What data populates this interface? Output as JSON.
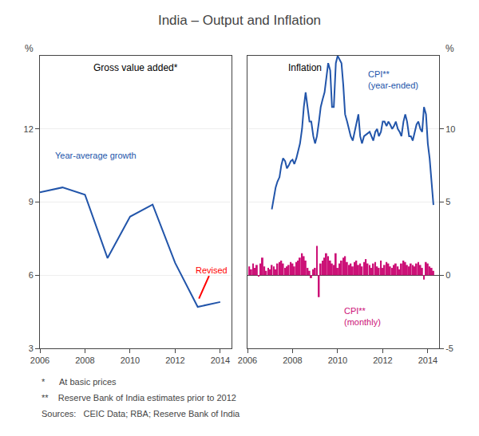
{
  "title": "India – Output and Inflation",
  "notes": [
    "*      At basic prices",
    "**    Reserve Bank of India estimates prior to 2012",
    "Sources:   CEIC Data; RBA; Reserve Bank of India"
  ],
  "chart_data": [
    {
      "type": "line",
      "subtitle": "Gross value added*",
      "ylabel": "%",
      "x": [
        2006,
        2007,
        2008,
        2009,
        2010,
        2011,
        2012,
        2013,
        2014
      ],
      "series": [
        {
          "name": "Year-average growth",
          "color": "#2255aa",
          "values": [
            9.4,
            9.6,
            9.3,
            6.7,
            8.4,
            8.9,
            6.5,
            4.7,
            4.9
          ]
        }
      ],
      "xlim": [
        2006,
        2014.5
      ],
      "xticks": [
        2006,
        2008,
        2010,
        2012,
        2014
      ],
      "ylim": [
        3,
        15
      ],
      "yticks": [
        3,
        6,
        9,
        12
      ],
      "grid": true,
      "annotations": [
        {
          "text": "Revised",
          "color": "red"
        }
      ]
    },
    {
      "type": "bar",
      "subtitle": "Inflation",
      "ylabel": "%",
      "series": [
        {
          "name": "CPI**\n(monthly)",
          "type": "bar",
          "color": "#cc1177",
          "x": [
            2006.08,
            2006.17,
            2006.25,
            2006.33,
            2006.42,
            2006.5,
            2006.58,
            2006.67,
            2006.75,
            2006.83,
            2006.92,
            2007.0,
            2007.08,
            2007.17,
            2007.25,
            2007.33,
            2007.42,
            2007.5,
            2007.58,
            2007.67,
            2007.75,
            2007.83,
            2007.92,
            2008.0,
            2008.08,
            2008.17,
            2008.25,
            2008.33,
            2008.42,
            2008.5,
            2008.58,
            2008.67,
            2008.75,
            2008.83,
            2008.92,
            2009.0,
            2009.08,
            2009.17,
            2009.25,
            2009.33,
            2009.42,
            2009.5,
            2009.58,
            2009.67,
            2009.75,
            2009.83,
            2009.92,
            2010.0,
            2010.08,
            2010.17,
            2010.25,
            2010.33,
            2010.42,
            2010.5,
            2010.58,
            2010.67,
            2010.75,
            2010.83,
            2010.92,
            2011.0,
            2011.08,
            2011.17,
            2011.25,
            2011.33,
            2011.42,
            2011.5,
            2011.58,
            2011.67,
            2011.75,
            2011.83,
            2011.92,
            2012.0,
            2012.08,
            2012.17,
            2012.25,
            2012.33,
            2012.42,
            2012.5,
            2012.58,
            2012.67,
            2012.75,
            2012.83,
            2012.92,
            2013.0,
            2013.08,
            2013.17,
            2013.25,
            2013.33,
            2013.42,
            2013.5,
            2013.58,
            2013.67,
            2013.75,
            2013.83,
            2013.92,
            2014.0,
            2014.08,
            2014.17,
            2014.25
          ],
          "values": [
            0.6,
            0.4,
            0.8,
            0.5,
            0.7,
            -0.1,
            0.8,
            1.2,
            0.6,
            0.3,
            0.5,
            0.4,
            0.7,
            0.6,
            0.4,
            0.8,
            0.9,
            1.0,
            0.8,
            0.5,
            0.6,
            0.7,
            0.9,
            0.8,
            0.6,
            0.9,
            1.0,
            1.2,
            1.5,
            1.3,
            1.0,
            0.5,
            0.3,
            -0.2,
            0.4,
            0.5,
            2.0,
            -1.5,
            0.8,
            1.0,
            1.2,
            1.5,
            1.3,
            1.0,
            0.8,
            0.7,
            1.5,
            0.5,
            0.8,
            1.0,
            1.2,
            1.3,
            0.9,
            0.7,
            0.8,
            0.6,
            0.9,
            1.0,
            0.7,
            0.8,
            0.6,
            0.9,
            1.1,
            0.8,
            0.7,
            0.5,
            0.8,
            0.9,
            0.6,
            0.5,
            1.0,
            0.5,
            0.7,
            0.9,
            0.8,
            0.6,
            0.5,
            0.7,
            0.8,
            0.6,
            0.4,
            0.8,
            1.0,
            0.9,
            0.7,
            0.6,
            0.8,
            0.7,
            0.6,
            0.8,
            0.9,
            0.7,
            0.5,
            -0.3,
            0.9,
            0.8,
            0.6,
            0.5,
            0.3
          ]
        },
        {
          "name": "CPI**\n(year-ended)",
          "type": "line",
          "color": "#2255aa",
          "x": [
            2007.08,
            2007.17,
            2007.25,
            2007.33,
            2007.42,
            2007.5,
            2007.58,
            2007.67,
            2007.75,
            2007.83,
            2007.92,
            2008.0,
            2008.08,
            2008.17,
            2008.25,
            2008.33,
            2008.42,
            2008.5,
            2008.58,
            2008.67,
            2008.75,
            2008.83,
            2008.92,
            2009.0,
            2009.08,
            2009.17,
            2009.25,
            2009.33,
            2009.42,
            2009.5,
            2009.58,
            2009.67,
            2009.75,
            2009.83,
            2009.92,
            2010.0,
            2010.08,
            2010.17,
            2010.25,
            2010.33,
            2010.42,
            2010.5,
            2010.58,
            2010.67,
            2010.75,
            2010.83,
            2010.92,
            2011.0,
            2011.08,
            2011.17,
            2011.25,
            2011.33,
            2011.42,
            2011.5,
            2011.58,
            2011.67,
            2011.75,
            2011.83,
            2011.92,
            2012.0,
            2012.08,
            2012.17,
            2012.25,
            2012.33,
            2012.42,
            2012.5,
            2012.58,
            2012.67,
            2012.75,
            2012.83,
            2012.92,
            2013.0,
            2013.08,
            2013.17,
            2013.25,
            2013.33,
            2013.42,
            2013.5,
            2013.58,
            2013.67,
            2013.75,
            2013.83,
            2013.92,
            2014.0,
            2014.08,
            2014.17,
            2014.25
          ],
          "values": [
            4.5,
            5.2,
            6.0,
            6.4,
            6.7,
            7.5,
            8.0,
            7.8,
            7.3,
            7.5,
            7.8,
            7.9,
            7.6,
            8.0,
            8.5,
            9.0,
            10.0,
            11.5,
            12.5,
            11.5,
            10.5,
            10.5,
            9.5,
            9.0,
            9.5,
            10.5,
            11.5,
            12.0,
            12.5,
            13.5,
            14.5,
            14.0,
            11.5,
            11.5,
            14.5,
            15.0,
            14.8,
            14.5,
            13.0,
            11.0,
            10.5,
            10.0,
            9.5,
            9.2,
            9.8,
            10.5,
            11.0,
            9.5,
            9.0,
            9.5,
            9.6,
            9.7,
            9.8,
            9.5,
            9.2,
            9.8,
            10.0,
            9.5,
            9.8,
            10.5,
            10.5,
            10.2,
            10.5,
            10.3,
            10.0,
            10.2,
            10.5,
            10.0,
            9.8,
            9.5,
            10.5,
            11.0,
            10.5,
            9.5,
            9.5,
            9.2,
            9.8,
            10.3,
            10.5,
            10.0,
            9.8,
            11.5,
            11.0,
            9.0,
            8.0,
            6.5,
            4.8
          ]
        }
      ],
      "xlim": [
        2006,
        2014.5
      ],
      "xticks": [
        2006,
        2008,
        2010,
        2012,
        2014
      ],
      "ylim": [
        -5,
        15
      ],
      "yticks": [
        -5,
        0,
        5,
        10
      ],
      "grid": true
    }
  ]
}
